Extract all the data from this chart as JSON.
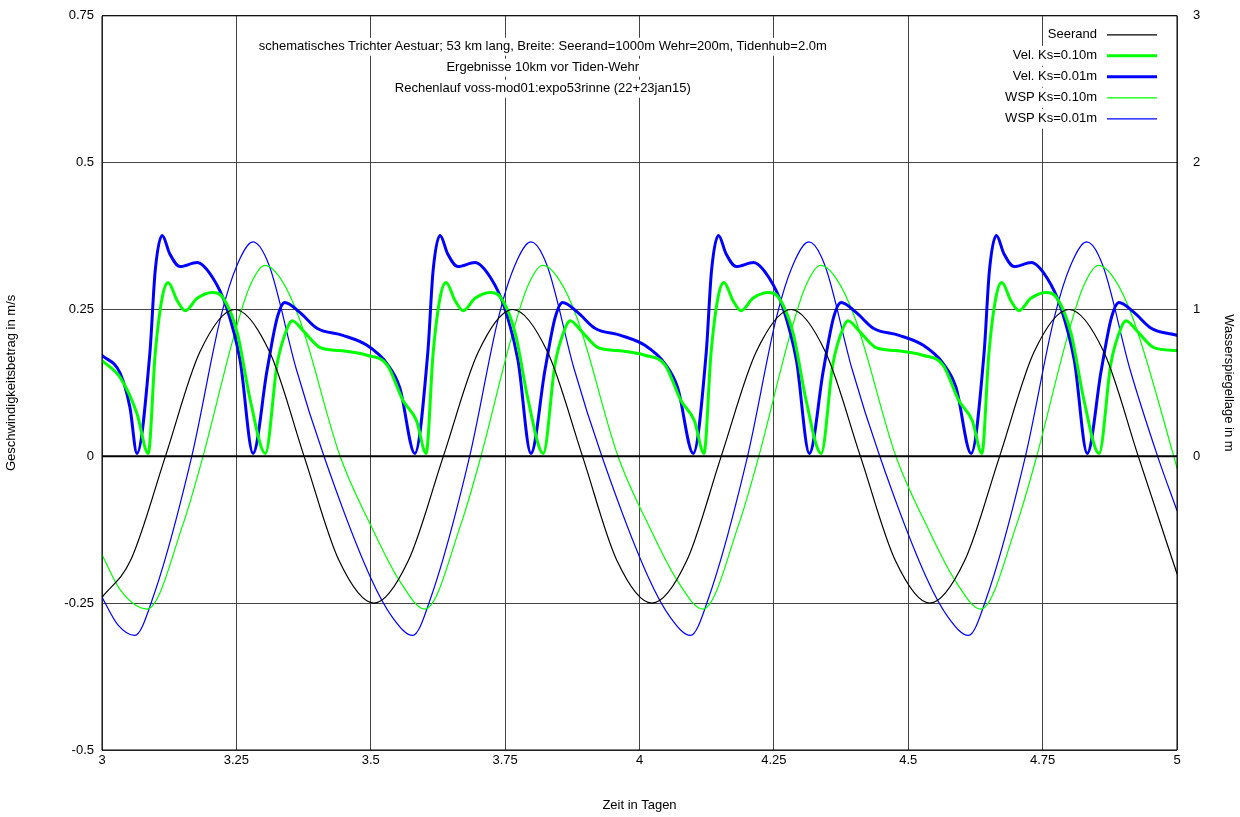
{
  "chart_data": {
    "type": "line",
    "title": "schematisches Trichter Aestuar; 53 km lang, Breite: Seerand=1000m Wehr=200m, Tidenhub=2.0m",
    "subtitle": "Ergebnisse 10km vor Tiden-Wehr",
    "annotations": [
      "Rechenlauf voss-mod01:expo53rinne (22+23jan15)"
    ],
    "xlabel": "Zeit in Tagen",
    "ylabel": "Geschwindigkeitsbetrag in m/s",
    "y2label": "Wasserspiegellage in m",
    "xlim": [
      3,
      5
    ],
    "xticks": [
      3,
      3.25,
      3.5,
      3.75,
      4,
      4.25,
      4.5,
      4.75,
      5
    ],
    "ylim": [
      -0.5,
      0.75
    ],
    "yticks": [
      -0.5,
      -0.25,
      0,
      0.25,
      0.5,
      0.75
    ],
    "y2lim": [
      -2,
      3
    ],
    "y2ticks": [
      0,
      1,
      2,
      3
    ],
    "grid": true,
    "legend": "top right",
    "marker": "none",
    "ref_lines": [
      {
        "axis": "y",
        "value": 0,
        "color": "#000000"
      }
    ],
    "series": [
      {
        "name": "Seerand",
        "color": "#000000",
        "axis": "y2",
        "x": [
          3,
          3.053,
          3.118,
          3.182,
          3.247,
          3.312,
          3.376,
          3.441,
          3.506,
          3.57,
          3.635,
          3.7,
          3.764,
          3.829,
          3.894,
          3.958,
          4.023,
          4.088,
          4.152,
          4.217,
          4.282,
          4.346,
          4.411,
          4.476,
          4.54,
          4.605,
          4.67,
          4.734,
          4.799,
          4.864,
          4.928,
          5
        ],
        "values": [
          -0.96,
          -0.71,
          0,
          0.71,
          1,
          0.71,
          0,
          -0.71,
          -1,
          -0.71,
          0,
          0.71,
          1,
          0.71,
          0,
          -0.71,
          -1,
          -0.71,
          0,
          0.71,
          1,
          0.71,
          0,
          -0.71,
          -1,
          -0.71,
          0,
          0.71,
          1,
          0.71,
          0,
          -0.8
        ]
      },
      {
        "name": "Vel. Ks=0.10m",
        "color": "#00ff00",
        "x": [
          3,
          3.034,
          3.065,
          3.086,
          3.099,
          3.112,
          3.123,
          3.14,
          3.155,
          3.177,
          3.205,
          3.226,
          3.252,
          3.276,
          3.304,
          3.326,
          3.345,
          3.354,
          3.374,
          3.406,
          3.443,
          3.493,
          3.531,
          3.56,
          3.585,
          3.603,
          3.616,
          3.629,
          3.64,
          3.657,
          3.672,
          3.694,
          3.722,
          3.743,
          3.769,
          3.793,
          3.821,
          3.843,
          3.862,
          3.871,
          3.891,
          3.923,
          3.96,
          4.01,
          4.048,
          4.077,
          4.102,
          4.12,
          4.133,
          4.146,
          4.157,
          4.174,
          4.189,
          4.211,
          4.239,
          4.26,
          4.286,
          4.31,
          4.338,
          4.36,
          4.379,
          4.388,
          4.408,
          4.44,
          4.477,
          4.527,
          4.565,
          4.594,
          4.619,
          4.637,
          4.65,
          4.663,
          4.674,
          4.691,
          4.706,
          4.728,
          4.756,
          4.777,
          4.803,
          4.827,
          4.855,
          4.877,
          4.896,
          4.905,
          4.925,
          4.957,
          5
        ],
        "values": [
          0.163,
          0.134,
          0.073,
          0.005,
          0.175,
          0.27,
          0.296,
          0.265,
          0.248,
          0.269,
          0.279,
          0.269,
          0.209,
          0.095,
          0.005,
          0.158,
          0.219,
          0.231,
          0.214,
          0.185,
          0.18,
          0.172,
          0.155,
          0.095,
          0.061,
          0.005,
          0.175,
          0.27,
          0.296,
          0.265,
          0.248,
          0.269,
          0.279,
          0.269,
          0.209,
          0.095,
          0.005,
          0.158,
          0.219,
          0.231,
          0.214,
          0.185,
          0.18,
          0.172,
          0.155,
          0.095,
          0.061,
          0.005,
          0.175,
          0.27,
          0.296,
          0.265,
          0.248,
          0.269,
          0.279,
          0.269,
          0.209,
          0.095,
          0.005,
          0.158,
          0.219,
          0.231,
          0.214,
          0.185,
          0.18,
          0.172,
          0.155,
          0.095,
          0.061,
          0.005,
          0.175,
          0.27,
          0.296,
          0.265,
          0.248,
          0.269,
          0.279,
          0.269,
          0.209,
          0.095,
          0.005,
          0.158,
          0.219,
          0.231,
          0.214,
          0.185,
          0.18
        ]
      },
      {
        "name": "Vel. Ks=0.01m",
        "color": "#0000ff",
        "x": [
          3,
          3.034,
          3.052,
          3.065,
          3.089,
          3.099,
          3.112,
          3.126,
          3.145,
          3.177,
          3.206,
          3.232,
          3.257,
          3.281,
          3.307,
          3.326,
          3.34,
          3.368,
          3.4,
          3.448,
          3.493,
          3.53,
          3.554,
          3.582,
          3.606,
          3.616,
          3.629,
          3.643,
          3.662,
          3.694,
          3.723,
          3.749,
          3.774,
          3.798,
          3.824,
          3.843,
          3.857,
          3.885,
          3.917,
          3.965,
          4.01,
          4.047,
          4.071,
          4.1,
          4.124,
          4.134,
          4.147,
          4.161,
          4.18,
          4.212,
          4.241,
          4.267,
          4.292,
          4.316,
          4.342,
          4.361,
          4.375,
          4.403,
          4.435,
          4.483,
          4.528,
          4.565,
          4.589,
          4.617,
          4.641,
          4.651,
          4.664,
          4.678,
          4.697,
          4.729,
          4.758,
          4.784,
          4.809,
          4.833,
          4.859,
          4.878,
          4.892,
          4.92,
          4.952,
          5
        ],
        "values": [
          0.172,
          0.141,
          0.083,
          0.005,
          0.175,
          0.316,
          0.376,
          0.345,
          0.323,
          0.33,
          0.304,
          0.253,
          0.163,
          0.005,
          0.146,
          0.236,
          0.262,
          0.245,
          0.218,
          0.206,
          0.189,
          0.158,
          0.117,
          0.005,
          0.175,
          0.316,
          0.376,
          0.345,
          0.323,
          0.33,
          0.304,
          0.253,
          0.163,
          0.005,
          0.146,
          0.236,
          0.262,
          0.245,
          0.218,
          0.206,
          0.189,
          0.158,
          0.117,
          0.005,
          0.175,
          0.316,
          0.376,
          0.345,
          0.323,
          0.33,
          0.304,
          0.253,
          0.163,
          0.005,
          0.146,
          0.236,
          0.262,
          0.245,
          0.218,
          0.206,
          0.189,
          0.158,
          0.117,
          0.005,
          0.175,
          0.316,
          0.376,
          0.345,
          0.323,
          0.33,
          0.304,
          0.253,
          0.163,
          0.005,
          0.146,
          0.236,
          0.262,
          0.245,
          0.218,
          0.206
        ]
      },
      {
        "name": "WSP Ks=0.10m",
        "color": "#00ff00",
        "axis": "y2",
        "x": [
          3,
          3.034,
          3.084,
          3.151,
          3.188,
          3.244,
          3.274,
          3.303,
          3.334,
          3.368,
          3.443,
          3.504,
          3.554,
          3.601,
          3.668,
          3.705,
          3.761,
          3.791,
          3.82,
          3.851,
          3.885,
          3.96,
          4.021,
          4.071,
          4.118,
          4.185,
          4.222,
          4.278,
          4.308,
          4.337,
          4.368,
          4.402,
          4.477,
          4.538,
          4.588,
          4.635,
          4.702,
          4.739,
          4.795,
          4.825,
          4.854,
          4.885,
          4.919,
          4.994,
          5
        ],
        "values": [
          -0.67,
          -0.91,
          -1.04,
          -0.46,
          0,
          0.8,
          1.15,
          1.3,
          1.2,
          0.93,
          0,
          -0.5,
          -0.85,
          -1.04,
          -0.46,
          0,
          0.8,
          1.15,
          1.3,
          1.2,
          0.93,
          0,
          -0.5,
          -0.85,
          -1.04,
          -0.46,
          0,
          0.8,
          1.15,
          1.3,
          1.2,
          0.93,
          0,
          -0.5,
          -0.85,
          -1.04,
          -0.46,
          0,
          0.8,
          1.15,
          1.3,
          1.2,
          0.93,
          0,
          -0.08
        ]
      },
      {
        "name": "WSP Ks=0.01m",
        "color": "#0000ff",
        "axis": "y2",
        "x": [
          3,
          3.03,
          3.061,
          3.095,
          3.167,
          3.221,
          3.251,
          3.281,
          3.311,
          3.361,
          3.413,
          3.499,
          3.541,
          3.578,
          3.612,
          3.684,
          3.738,
          3.768,
          3.798,
          3.828,
          3.878,
          3.93,
          4.016,
          4.058,
          4.095,
          4.129,
          4.201,
          4.255,
          4.285,
          4.315,
          4.345,
          4.395,
          4.447,
          4.533,
          4.575,
          4.612,
          4.646,
          4.718,
          4.772,
          4.802,
          4.832,
          4.862,
          4.912,
          4.964,
          5
        ],
        "values": [
          -0.96,
          -1.15,
          -1.22,
          -0.96,
          0,
          0.95,
          1.3,
          1.46,
          1.3,
          0.6,
          0,
          -0.82,
          -1.1,
          -1.22,
          -0.96,
          0,
          0.95,
          1.3,
          1.46,
          1.3,
          0.6,
          0,
          -0.82,
          -1.1,
          -1.22,
          -0.96,
          0,
          0.95,
          1.3,
          1.46,
          1.3,
          0.6,
          0,
          -0.82,
          -1.1,
          -1.22,
          -0.96,
          0,
          0.95,
          1.3,
          1.46,
          1.3,
          0.6,
          0,
          -0.37
        ]
      }
    ]
  }
}
